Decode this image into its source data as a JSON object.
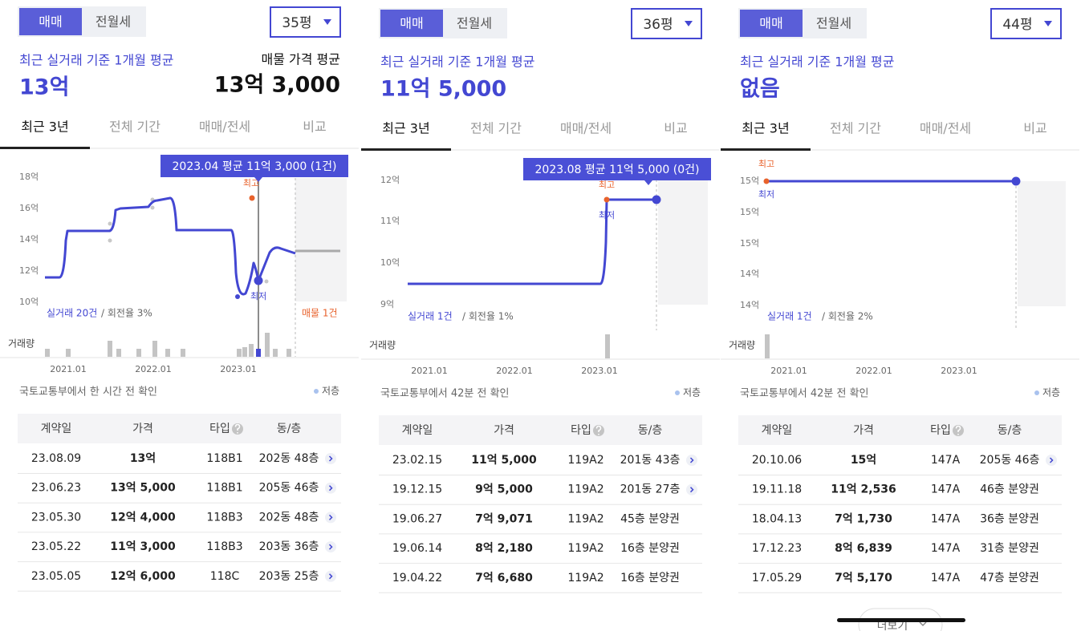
{
  "panels": [
    {
      "deal_tabs": [
        "매매",
        "전월세"
      ],
      "size": "35평",
      "avg_label": "최근 실거래 기준 1개월 평균",
      "avg_value": "13억",
      "listing_label": "매물 가격 평균",
      "listing_value": "13억 3,000",
      "period_tabs": [
        "최근 3년",
        "전체 기간",
        "매매/전세",
        "비교"
      ],
      "tooltip": "2023.04 평균 11억 3,000 (1건)",
      "y_labels": [
        "18억",
        "16억",
        "14억",
        "12억",
        "10억"
      ],
      "high_label": "최고",
      "low_label": "최저",
      "trades": "실거래 20건",
      "turnover": "/ 회전율 3%",
      "listing_count": "매물 1건",
      "volume_label": "거래량",
      "x_labels": [
        "2021.01",
        "2022.01",
        "2023.01"
      ],
      "source": "국토교통부에서 한 시간 전 확인",
      "legend": "저층",
      "table": {
        "headers": [
          "계약일",
          "가격",
          "타입",
          "동/층"
        ],
        "rows": [
          [
            "23.08.09",
            "13억",
            "118B1",
            "202동 48층"
          ],
          [
            "23.06.23",
            "13억 5,000",
            "118B1",
            "205동 46층"
          ],
          [
            "23.05.30",
            "12억 4,000",
            "118B3",
            "202동 48층"
          ],
          [
            "23.05.22",
            "11억 3,000",
            "118B3",
            "203동 36층"
          ],
          [
            "23.05.05",
            "12억 6,000",
            "118C",
            "203동 25층"
          ]
        ]
      }
    },
    {
      "deal_tabs": [
        "매매",
        "전월세"
      ],
      "size": "36평",
      "avg_label": "최근 실거래 기준 1개월 평균",
      "avg_value": "11억 5,000",
      "period_tabs": [
        "최근 3년",
        "전체 기간",
        "매매/전세",
        "비교"
      ],
      "tooltip": "2023.08 평균 11억 5,000 (0건)",
      "y_labels": [
        "12억",
        "11억",
        "10억",
        "9억"
      ],
      "high_label": "최고",
      "low_label": "최저",
      "trades": "실거래 1건",
      "turnover": "/ 회전율 1%",
      "volume_label": "거래량",
      "x_labels": [
        "2021.01",
        "2022.01",
        "2023.01"
      ],
      "source": "국토교통부에서 42분 전 확인",
      "legend": "저층",
      "table": {
        "headers": [
          "계약일",
          "가격",
          "타입",
          "동/층"
        ],
        "rows": [
          [
            "23.02.15",
            "11억 5,000",
            "119A2",
            "201동 43층"
          ],
          [
            "19.12.15",
            "9억 5,000",
            "119A2",
            "201동 27층"
          ],
          [
            "19.06.27",
            "7억 9,071",
            "119A2",
            "45층 분양권"
          ],
          [
            "19.06.14",
            "8억 2,180",
            "119A2",
            "16층 분양권"
          ],
          [
            "19.04.22",
            "7억 6,680",
            "119A2",
            "16층 분양권"
          ]
        ]
      }
    },
    {
      "deal_tabs": [
        "매매",
        "전월세"
      ],
      "size": "44평",
      "avg_label": "최근 실거래 기준 1개월 평균",
      "avg_value": "없음",
      "period_tabs": [
        "최근 3년",
        "전체 기간",
        "매매/전세",
        "비교"
      ],
      "y_labels": [
        "15억",
        "15억",
        "15억",
        "14억",
        "14억"
      ],
      "high_label": "최고",
      "low_label": "최저",
      "trades": "실거래 1건",
      "turnover": "/ 회전율 2%",
      "volume_label": "거래량",
      "x_labels": [
        "2021.01",
        "2022.01",
        "2023.01"
      ],
      "source": "국토교통부에서 42분 전 확인",
      "legend": "저층",
      "table": {
        "headers": [
          "계약일",
          "가격",
          "타입",
          "동/층"
        ],
        "rows": [
          [
            "20.10.06",
            "15억",
            "147A",
            "205동 46층"
          ],
          [
            "19.11.18",
            "11억 2,536",
            "147A",
            "46층 분양권"
          ],
          [
            "18.04.13",
            "7억 1,730",
            "147A",
            "36층 분양권"
          ],
          [
            "17.12.23",
            "8억 6,839",
            "147A",
            "31층 분양권"
          ],
          [
            "17.05.29",
            "7억 5,170",
            "147A",
            "47층 분양권"
          ]
        ]
      }
    }
  ],
  "more": "더보기"
}
